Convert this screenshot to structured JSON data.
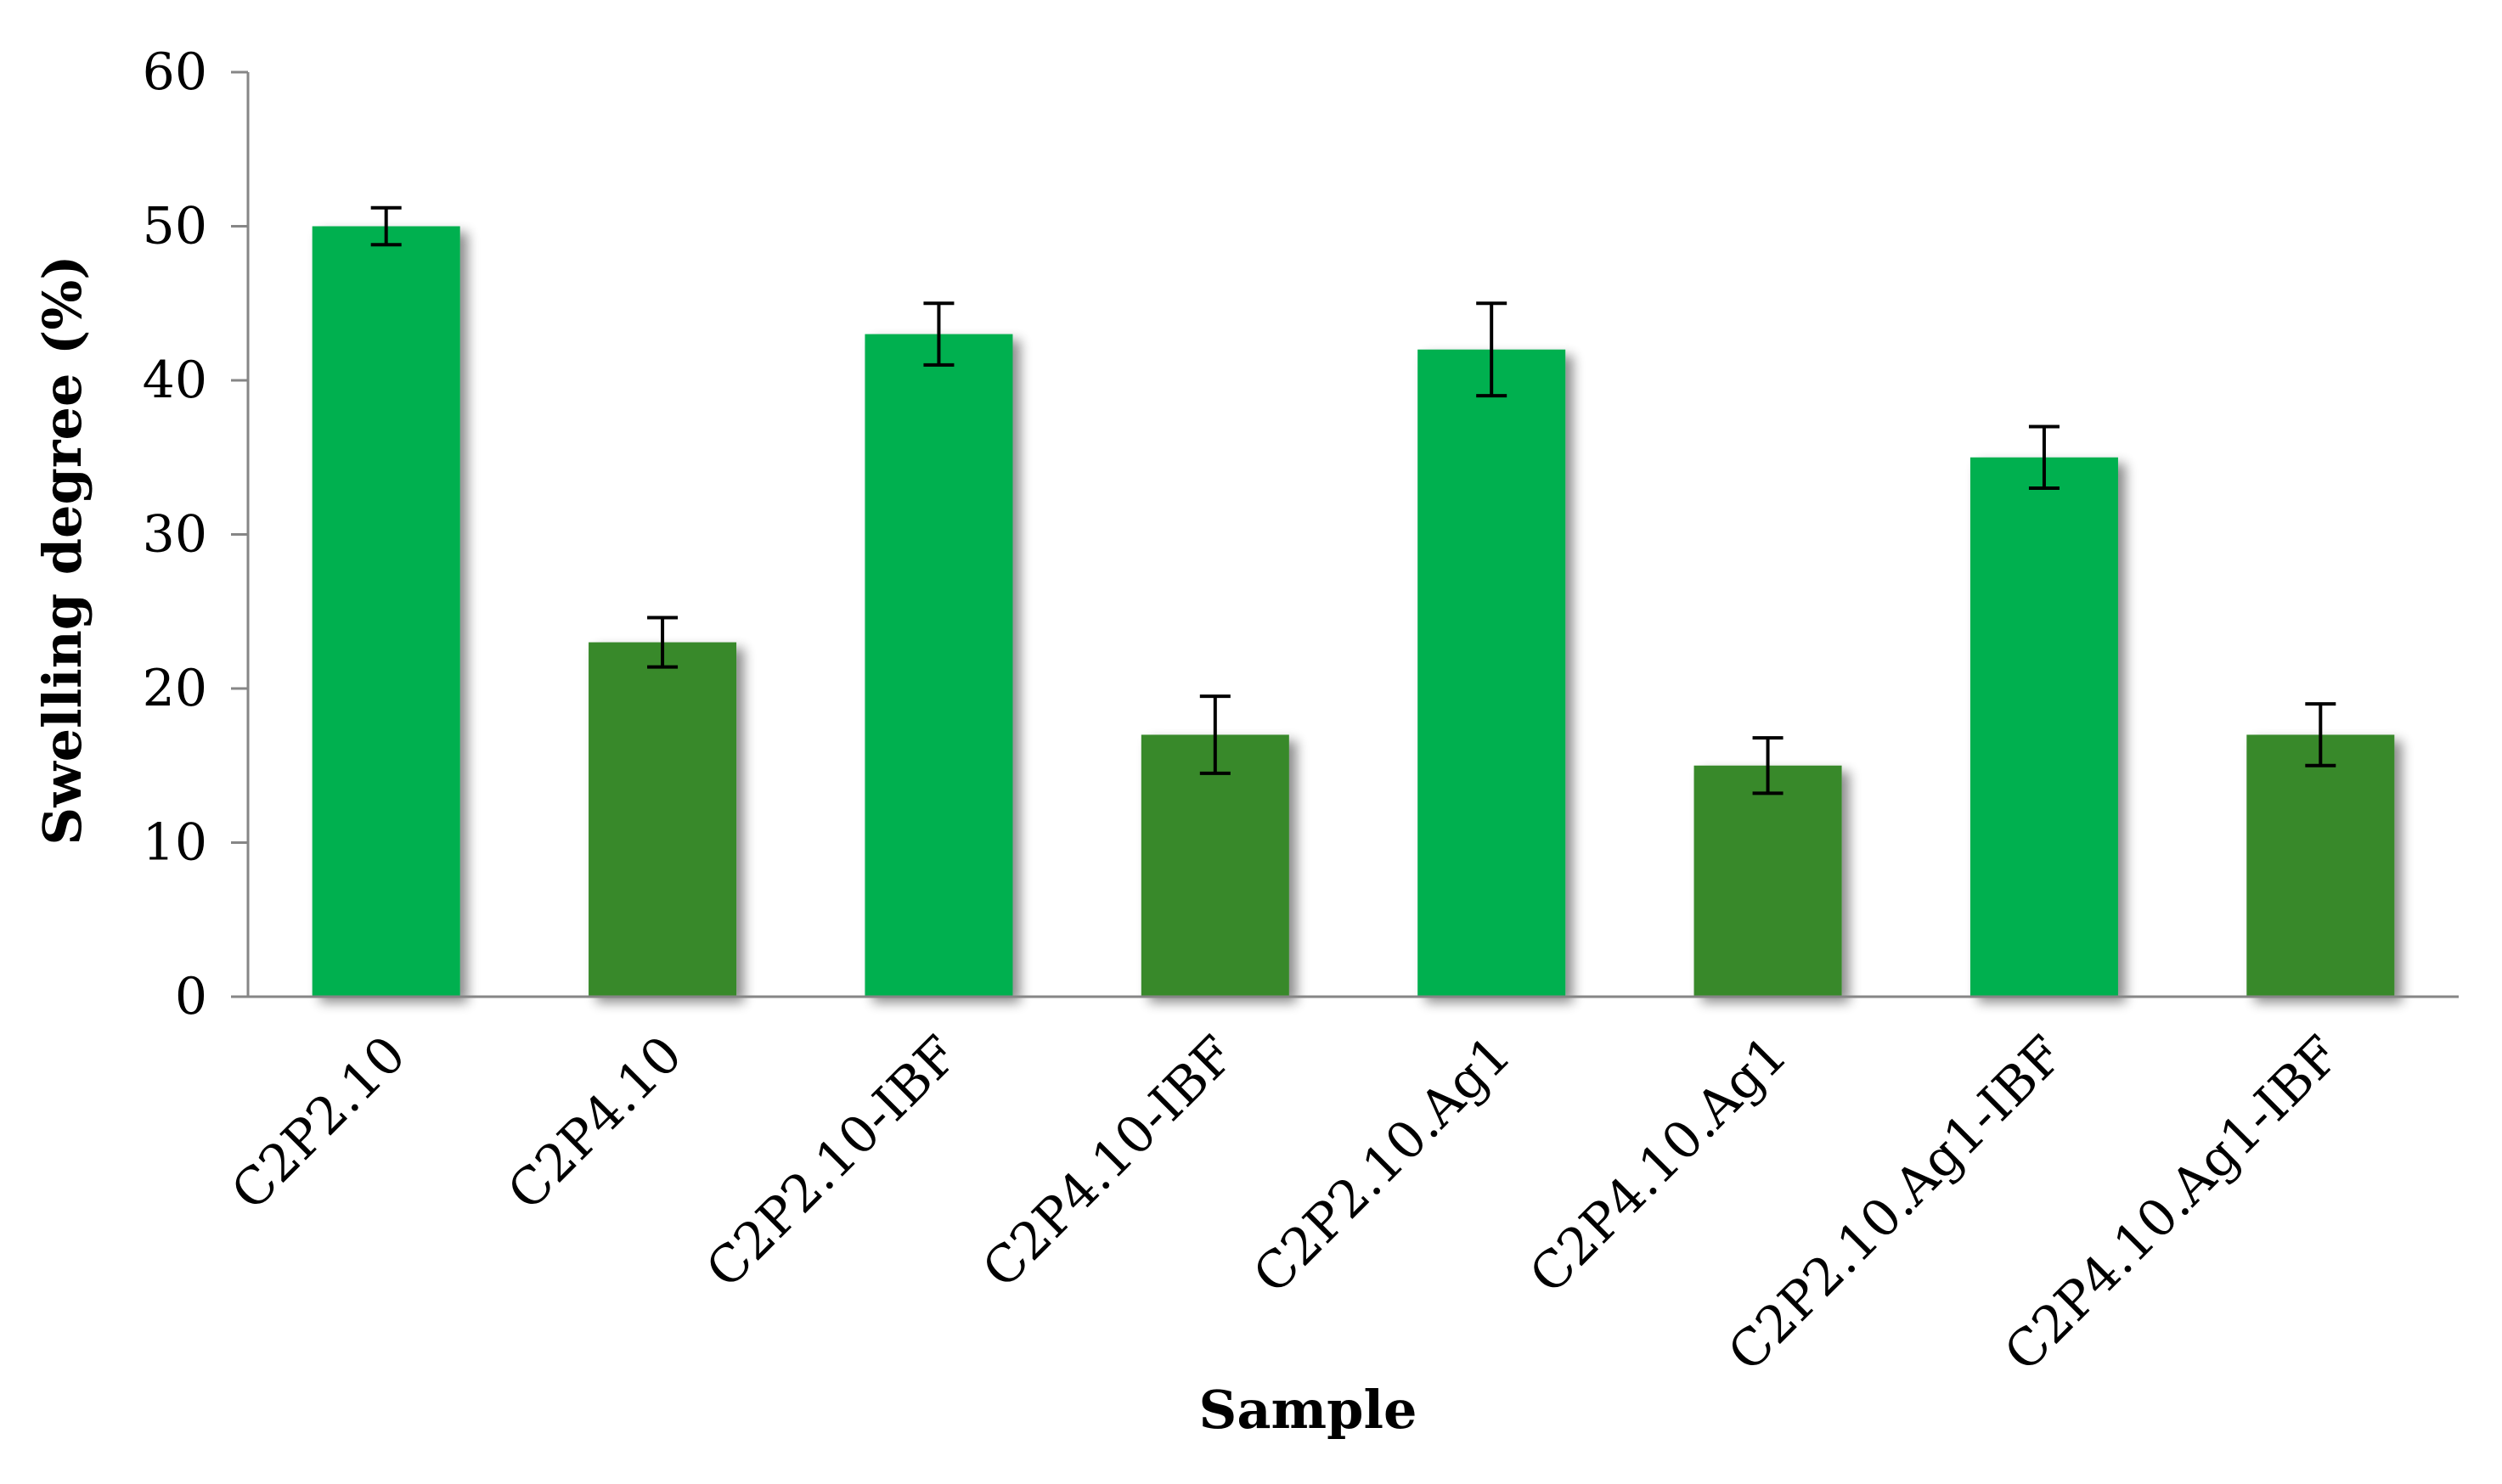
{
  "chart_data": {
    "type": "bar",
    "title": "",
    "xlabel": "Sample",
    "ylabel": "Swelling degree (%)",
    "ylim": [
      0,
      60
    ],
    "yticks": [
      0,
      10,
      20,
      30,
      40,
      50,
      60
    ],
    "grid": false,
    "legend": "none",
    "categories": [
      "C2P2.10",
      "C2P4.10",
      "C2P2.10-IBF",
      "C2P4.10-IBF",
      "C2P2.10.Ag1",
      "C2P4.10.Ag1",
      "C2P2.10.Ag1-IBF",
      "C2P4.10.Ag1-IBF"
    ],
    "values": [
      50,
      23,
      43,
      17,
      42,
      15,
      35,
      17
    ],
    "errors": [
      1.2,
      1.6,
      2.0,
      2.5,
      3.0,
      1.8,
      2.0,
      2.0
    ],
    "colors": [
      "#00b04f",
      "#37892b",
      "#00b04f",
      "#37892b",
      "#00b04f",
      "#37892b",
      "#00b04f",
      "#37892b"
    ]
  }
}
